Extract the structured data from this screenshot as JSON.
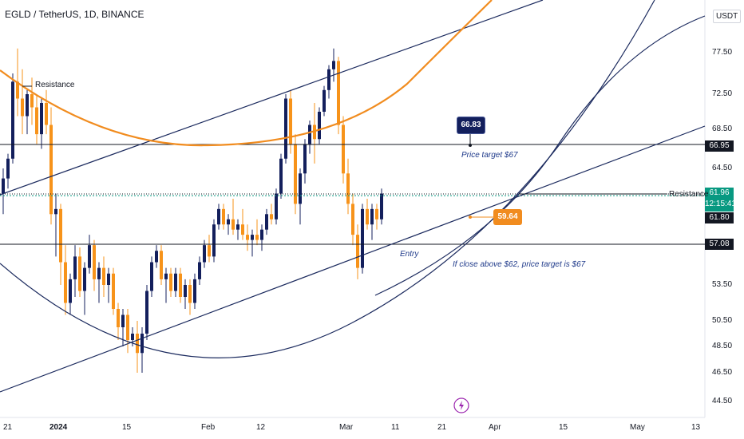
{
  "header": {
    "title": "EGLD / TetherUS, 1D, BINANCE",
    "currency": "USDT"
  },
  "colors": {
    "up": "#131f5c",
    "down": "#f7931a",
    "line": "#1b2a5e",
    "orange": "#f18c1f",
    "green": "#089981"
  },
  "price_tags": {
    "p66_95": "66.95",
    "current": "61.96",
    "countdown": "12:15:41",
    "p61_80": "61.80",
    "p57_08": "57.08"
  },
  "annotations": {
    "resistance_left": "Resistance",
    "resistance_right": "Resistance",
    "price_target": "Price target $67",
    "entry": "Entry",
    "close_above": "If close above $62, price target is $67",
    "callout_high": "66.83",
    "callout_low": "59.64"
  },
  "chart_data": {
    "type": "candlestick",
    "title": "EGLD / TetherUS, 1D, BINANCE",
    "y_ticks": [
      "77.50",
      "72.50",
      "68.50",
      "64.50",
      "53.50",
      "50.50",
      "48.50",
      "46.50",
      "44.50"
    ],
    "x_ticks": [
      "21",
      "2024",
      "15",
      "Feb",
      "12",
      "Mar",
      "11",
      "21",
      "Apr",
      "15",
      "May",
      "13"
    ],
    "horizontal_levels": [
      66.95,
      61.96,
      57.08
    ],
    "candles": [
      [
        62.0,
        64.5,
        60.0,
        63.5
      ],
      [
        63.5,
        66.0,
        62.5,
        65.5
      ],
      [
        65.5,
        75.0,
        65.0,
        74.0
      ],
      [
        74.0,
        78.0,
        70.0,
        72.0
      ],
      [
        72.0,
        75.5,
        68.0,
        70.0
      ],
      [
        70.0,
        73.0,
        68.0,
        72.5
      ],
      [
        72.5,
        74.5,
        69.0,
        71.0
      ],
      [
        71.0,
        72.5,
        67.0,
        68.0
      ],
      [
        68.0,
        72.0,
        66.5,
        71.5
      ],
      [
        71.5,
        73.0,
        68.0,
        69.0
      ],
      [
        69.0,
        71.0,
        59.0,
        60.0
      ],
      [
        60.0,
        62.0,
        56.0,
        60.5
      ],
      [
        60.5,
        61.0,
        53.5,
        55.5
      ],
      [
        55.5,
        57.0,
        51.0,
        52.0
      ],
      [
        52.0,
        54.5,
        51.0,
        54.0
      ],
      [
        54.0,
        57.0,
        52.5,
        56.0
      ],
      [
        56.0,
        56.8,
        52.5,
        53.0
      ],
      [
        53.0,
        55.5,
        51.0,
        55.0
      ],
      [
        55.0,
        58.0,
        54.5,
        57.0
      ],
      [
        57.0,
        57.5,
        53.0,
        54.0
      ],
      [
        54.0,
        55.5,
        52.0,
        55.0
      ],
      [
        55.0,
        56.0,
        52.5,
        53.5
      ],
      [
        53.5,
        55.0,
        52.0,
        54.5
      ],
      [
        54.5,
        55.0,
        51.0,
        51.5
      ],
      [
        51.5,
        52.0,
        49.0,
        50.0
      ],
      [
        50.0,
        51.5,
        48.5,
        51.0
      ],
      [
        51.0,
        51.5,
        48.0,
        49.0
      ],
      [
        49.0,
        50.0,
        48.5,
        49.5
      ],
      [
        49.5,
        50.5,
        46.5,
        48.0
      ],
      [
        48.0,
        50.0,
        46.5,
        49.5
      ],
      [
        49.5,
        53.5,
        49.0,
        53.0
      ],
      [
        53.0,
        56.0,
        52.5,
        55.5
      ],
      [
        55.5,
        57.0,
        55.0,
        56.5
      ],
      [
        56.5,
        57.0,
        53.5,
        54.0
      ],
      [
        54.0,
        55.0,
        52.0,
        54.5
      ],
      [
        54.5,
        55.0,
        52.5,
        53.0
      ],
      [
        53.0,
        55.0,
        52.5,
        54.5
      ],
      [
        54.5,
        55.0,
        52.0,
        52.5
      ],
      [
        52.5,
        54.0,
        51.5,
        53.5
      ],
      [
        53.5,
        54.0,
        51.0,
        52.0
      ],
      [
        52.0,
        54.5,
        51.5,
        54.0
      ],
      [
        54.0,
        56.0,
        53.5,
        55.5
      ],
      [
        55.5,
        57.5,
        55.0,
        57.0
      ],
      [
        57.0,
        58.0,
        55.5,
        56.0
      ],
      [
        56.0,
        59.5,
        55.5,
        59.0
      ],
      [
        59.0,
        61.0,
        58.5,
        60.5
      ],
      [
        60.5,
        61.0,
        58.5,
        59.0
      ],
      [
        59.0,
        60.0,
        58.0,
        59.5
      ],
      [
        59.5,
        61.5,
        58.0,
        58.5
      ],
      [
        58.5,
        59.5,
        57.5,
        59.0
      ],
      [
        59.0,
        60.5,
        57.5,
        58.0
      ],
      [
        58.0,
        59.0,
        56.5,
        57.5
      ],
      [
        57.5,
        58.5,
        56.0,
        58.0
      ],
      [
        58.0,
        59.5,
        57.0,
        57.5
      ],
      [
        57.5,
        59.0,
        56.5,
        58.5
      ],
      [
        58.5,
        60.5,
        58.0,
        60.0
      ],
      [
        60.0,
        61.0,
        59.0,
        59.5
      ],
      [
        59.5,
        62.5,
        59.0,
        62.0
      ],
      [
        62.0,
        66.0,
        61.5,
        65.5
      ],
      [
        65.5,
        72.5,
        65.0,
        72.0
      ],
      [
        72.0,
        73.0,
        66.0,
        67.0
      ],
      [
        67.0,
        68.0,
        60.0,
        61.0
      ],
      [
        61.0,
        64.5,
        59.0,
        64.0
      ],
      [
        64.0,
        67.5,
        63.0,
        67.0
      ],
      [
        67.0,
        69.5,
        66.0,
        69.0
      ],
      [
        69.0,
        71.5,
        65.0,
        67.5
      ],
      [
        67.5,
        71.0,
        67.0,
        70.5
      ],
      [
        70.5,
        73.5,
        70.0,
        73.0
      ],
      [
        73.0,
        76.0,
        72.0,
        75.5
      ],
      [
        75.5,
        78.0,
        74.0,
        76.5
      ],
      [
        76.5,
        77.0,
        68.0,
        69.0
      ],
      [
        69.0,
        70.0,
        63.0,
        64.0
      ],
      [
        64.0,
        65.5,
        60.0,
        61.0
      ],
      [
        61.0,
        62.0,
        57.0,
        58.0
      ],
      [
        58.0,
        59.0,
        54.0,
        55.0
      ],
      [
        55.0,
        61.0,
        54.5,
        60.5
      ],
      [
        60.5,
        61.5,
        58.5,
        59.0
      ],
      [
        59.0,
        61.0,
        57.5,
        60.5
      ],
      [
        60.5,
        61.0,
        58.5,
        59.5
      ],
      [
        59.5,
        62.5,
        59.0,
        62.0
      ]
    ]
  }
}
